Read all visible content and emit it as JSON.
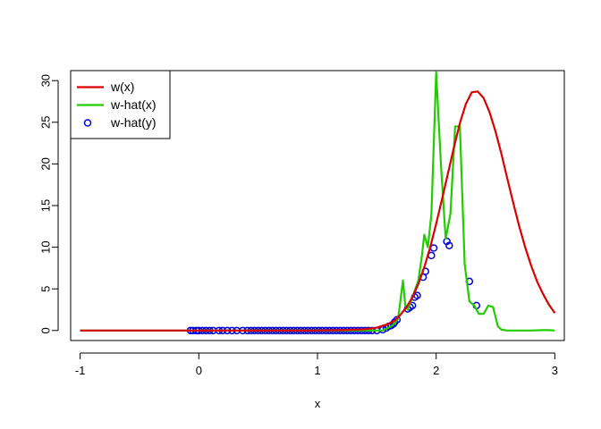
{
  "chart_data": {
    "type": "line",
    "title": "",
    "xlabel": "x",
    "ylabel": "",
    "xlim": [
      -1.08,
      3.08
    ],
    "ylim": [
      -1.2,
      31.2
    ],
    "x_ticks": [
      -1,
      0,
      1,
      2,
      3
    ],
    "y_ticks": [
      0,
      5,
      10,
      15,
      20,
      25,
      30
    ],
    "grid": false,
    "legend_position": "top-left",
    "series": [
      {
        "name": "w(x)",
        "kind": "line",
        "color": "#dd0000",
        "x": [
          -1,
          0,
          0.5,
          1.0,
          1.2,
          1.4,
          1.5,
          1.6,
          1.65,
          1.7,
          1.75,
          1.8,
          1.85,
          1.9,
          1.95,
          2.0,
          2.05,
          2.1,
          2.15,
          2.2,
          2.25,
          2.3,
          2.35,
          2.4,
          2.45,
          2.5,
          2.55,
          2.6,
          2.65,
          2.7,
          2.75,
          2.8,
          2.85,
          2.9,
          2.95,
          3.0
        ],
        "y": [
          0,
          0,
          0,
          0,
          0.05,
          0.15,
          0.35,
          0.8,
          1.2,
          1.9,
          2.8,
          4.0,
          5.6,
          7.6,
          10.0,
          12.8,
          15.8,
          18.9,
          22.0,
          24.9,
          27.2,
          28.6,
          28.7,
          27.9,
          26.2,
          23.9,
          21.2,
          18.2,
          15.3,
          12.5,
          10.0,
          7.8,
          5.9,
          4.4,
          3.1,
          2.1
        ]
      },
      {
        "name": "w-hat(x)",
        "kind": "line",
        "color": "#22cc00",
        "x": [
          -1,
          1.55,
          1.62,
          1.66,
          1.68,
          1.72,
          1.74,
          1.76,
          1.8,
          1.85,
          1.88,
          1.9,
          1.93,
          1.96,
          2.0,
          2.04,
          2.08,
          2.12,
          2.16,
          2.2,
          2.24,
          2.28,
          2.32,
          2.36,
          2.4,
          2.44,
          2.48,
          2.52,
          2.55,
          2.6,
          2.7,
          2.8,
          2.9,
          2.95,
          3.0
        ],
        "y": [
          0,
          0,
          0.5,
          1.0,
          1.5,
          6.0,
          3.0,
          2.5,
          4.0,
          6.0,
          9.0,
          11.5,
          10.0,
          14.0,
          31.0,
          20.0,
          11.0,
          14.0,
          24.5,
          24.5,
          8.0,
          3.5,
          3.0,
          2.0,
          2.0,
          3.0,
          2.8,
          0.5,
          0.1,
          0,
          0,
          0,
          0.05,
          0.05,
          0
        ]
      },
      {
        "name": "w-hat(y)",
        "kind": "scatter",
        "color": "#0000dd",
        "x": [
          -0.07,
          -0.05,
          -0.02,
          0.0,
          0.03,
          0.06,
          0.09,
          0.12,
          0.17,
          0.2,
          0.24,
          0.28,
          0.32,
          0.37,
          0.41,
          0.44,
          0.47,
          0.5,
          0.53,
          0.56,
          0.59,
          0.62,
          0.65,
          0.68,
          0.71,
          0.74,
          0.77,
          0.8,
          0.83,
          0.86,
          0.89,
          0.92,
          0.95,
          0.98,
          1.01,
          1.04,
          1.07,
          1.1,
          1.13,
          1.16,
          1.19,
          1.22,
          1.25,
          1.28,
          1.31,
          1.34,
          1.37,
          1.4,
          1.43,
          1.46,
          1.5,
          1.55,
          1.58,
          1.6,
          1.62,
          1.64,
          1.65,
          1.67,
          1.76,
          1.78,
          1.8,
          1.82,
          1.84,
          1.89,
          1.91,
          1.96,
          1.98,
          2.09,
          2.11,
          2.28,
          2.34
        ],
        "y": [
          0,
          0,
          0,
          0,
          0,
          0,
          0,
          0,
          0,
          0,
          0,
          0,
          0,
          0,
          0,
          0,
          0,
          0,
          0,
          0,
          0,
          0,
          0,
          0,
          0,
          0,
          0,
          0,
          0,
          0,
          0,
          0,
          0,
          0,
          0,
          0,
          0,
          0,
          0,
          0,
          0,
          0,
          0,
          0,
          0,
          0,
          0,
          0,
          0,
          0,
          0,
          0.1,
          0.3,
          0.5,
          0.6,
          0.8,
          1.0,
          1.3,
          2.6,
          2.8,
          3.0,
          4.0,
          4.2,
          6.4,
          7.1,
          9.0,
          9.9,
          10.7,
          10.2,
          5.9,
          3.0
        ]
      }
    ]
  }
}
